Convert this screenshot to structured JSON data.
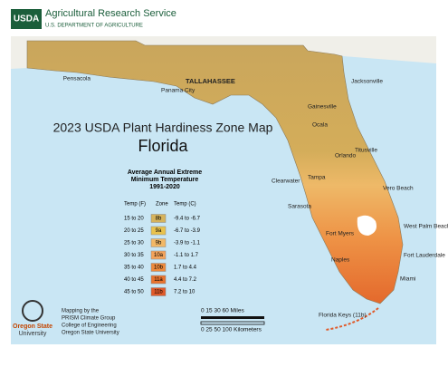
{
  "header": {
    "logo": "USDA",
    "agency": "Agricultural Research Service",
    "department": "U.S. DEPARTMENT OF AGRICULTURE"
  },
  "title": "2023 USDA Plant Hardiness Zone Map",
  "state": "Florida",
  "legend": {
    "title": [
      "Average Annual Extreme",
      "Minimum Temperature",
      "1991-2020"
    ],
    "columns": [
      "Temp (F)",
      "Zone",
      "Temp (C)"
    ],
    "rows": [
      {
        "temp_f": "15 to 20",
        "zone": "8b",
        "temp_c": "-9.4 to -6.7",
        "color": "#d6b35c"
      },
      {
        "temp_f": "20 to 25",
        "zone": "9a",
        "temp_c": "-6.7 to -3.9",
        "color": "#e9c24c"
      },
      {
        "temp_f": "25 to 30",
        "zone": "9b",
        "temp_c": "-3.9 to -1.1",
        "color": "#f2b866"
      },
      {
        "temp_f": "30 to 35",
        "zone": "10a",
        "temp_c": "-1.1 to 1.7",
        "color": "#f4a35a"
      },
      {
        "temp_f": "35 to 40",
        "zone": "10b",
        "temp_c": "1.7 to 4.4",
        "color": "#ee8a3c"
      },
      {
        "temp_f": "40 to 45",
        "zone": "11a",
        "temp_c": "4.4 to 7.2",
        "color": "#e8732e"
      },
      {
        "temp_f": "45 to 50",
        "zone": "11b",
        "temp_c": "7.2 to 10",
        "color": "#e05a2a"
      }
    ]
  },
  "cities": [
    "Pensacola",
    "Panama City",
    "TALLAHASSEE",
    "Jacksonville",
    "Gainesville",
    "Ocala",
    "Orlando",
    "Titusville",
    "Clearwater",
    "Tampa",
    "Vero Beach",
    "Sarasota",
    "West Palm Beach",
    "Fort Myers",
    "Fort Lauderdale",
    "Naples",
    "Miami",
    "Florida Keys (11b)"
  ],
  "credits": [
    "Mapping by the",
    "PRISM Climate Group",
    "College of Engineering",
    "Oregon State University"
  ],
  "osu_logo": [
    "Oregon State",
    "University"
  ],
  "scale": {
    "miles": "0  15  30      60 Miles",
    "kilometers": "0   25  50      100 Kilometers"
  }
}
